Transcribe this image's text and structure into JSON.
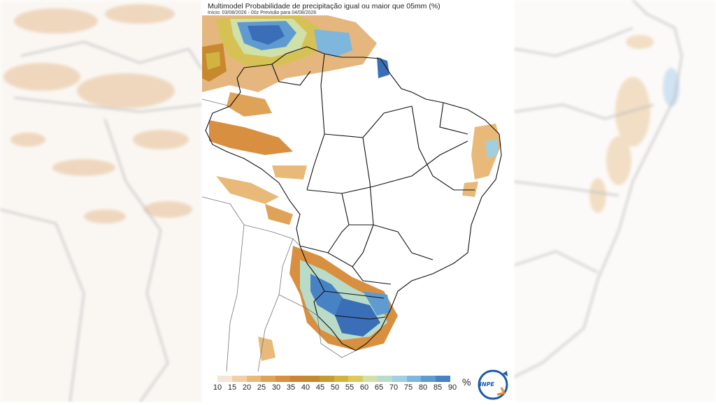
{
  "map": {
    "title": "Multimodel Probabilidade de precipitação igual ou maior que 05mm (%)",
    "subtitle": "Início: 03/08/2026 - 00z  Previsão para 04/08/2026"
  },
  "legend": {
    "unit": "%",
    "levels": [
      "10",
      "15",
      "20",
      "25",
      "30",
      "35",
      "40",
      "45",
      "50",
      "55",
      "60",
      "65",
      "70",
      "75",
      "80",
      "85",
      "90"
    ],
    "colors": [
      "#f6e6d6",
      "#f0cfa6",
      "#e8b978",
      "#dfa357",
      "#d89040",
      "#cf8435",
      "#c8882e",
      "#c99a33",
      "#d1b440",
      "#ddc95a",
      "#cfe0a8",
      "#b9dcc8",
      "#9fcfe0",
      "#7fb6dc",
      "#5f9ad0",
      "#4782c4",
      "#3a6fb8"
    ]
  },
  "logo": {
    "text": "INPE"
  }
}
